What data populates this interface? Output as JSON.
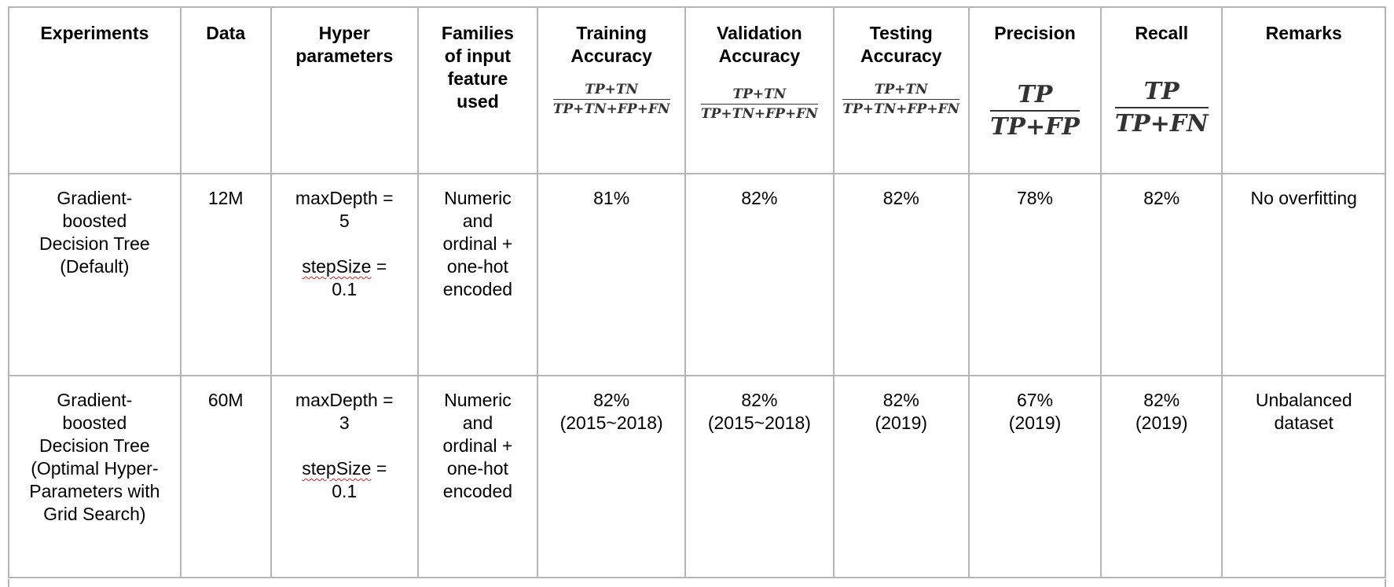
{
  "headers": {
    "experiments": "Experiments",
    "data": "Data",
    "hyper": [
      "Hyper",
      "parameters"
    ],
    "families": [
      "Families",
      "of input",
      "feature",
      "used"
    ],
    "training": [
      "Training",
      "Accuracy"
    ],
    "validation": [
      "Validation",
      "Accuracy"
    ],
    "testing": [
      "Testing",
      "Accuracy"
    ],
    "precision": "Precision",
    "recall": "Recall",
    "remarks": "Remarks"
  },
  "formulas": {
    "accuracy": {
      "numerator": "TP+TN",
      "denominator": "TP+TN+FP+FN"
    },
    "precision": {
      "numerator": "TP",
      "denominator": "TP+FP"
    },
    "recall": {
      "numerator": "TP",
      "denominator": "TP+FN"
    }
  },
  "rows": [
    {
      "experiment": [
        "Gradient-",
        "boosted",
        "Decision Tree",
        "(Default)"
      ],
      "data": "12M",
      "max_depth_label": "maxDepth =",
      "max_depth_value": "5",
      "step_size_label": "stepSize",
      "step_size_eq": " =",
      "step_size_value": "0.1",
      "families": [
        "Numeric",
        "and",
        "ordinal +",
        "one-hot",
        "encoded"
      ],
      "training": [
        "81%"
      ],
      "validation": [
        "82%"
      ],
      "testing": [
        "82%"
      ],
      "precision": [
        "78%"
      ],
      "recall": [
        "82%"
      ],
      "remarks": [
        "No overfitting"
      ]
    },
    {
      "experiment": [
        "Gradient-",
        "boosted",
        "Decision Tree",
        "(Optimal Hyper-",
        "Parameters with",
        "Grid Search)"
      ],
      "data": "60M",
      "max_depth_label": "maxDepth =",
      "max_depth_value": "3",
      "step_size_label": "stepSize",
      "step_size_eq": " =",
      "step_size_value": "0.1",
      "families": [
        "Numeric",
        "and",
        "ordinal +",
        "one-hot",
        "encoded"
      ],
      "training": [
        "82%",
        "(2015~2018)"
      ],
      "validation": [
        "82%",
        "(2015~2018)"
      ],
      "testing": [
        "82%",
        "(2019)"
      ],
      "precision": [
        "67%",
        "(2019)"
      ],
      "recall": [
        "82%",
        "(2019)"
      ],
      "remarks": [
        "Unbalanced",
        "dataset"
      ]
    }
  ]
}
